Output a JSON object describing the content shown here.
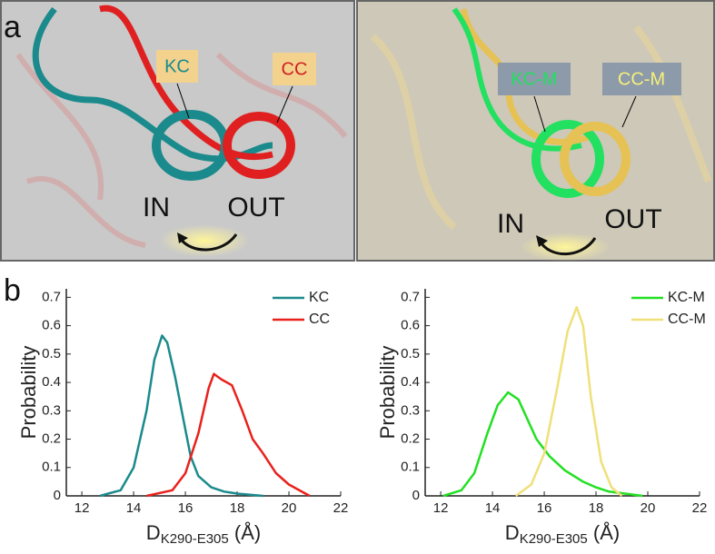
{
  "panels": {
    "a": {
      "label": "a",
      "left": {
        "kc": "KC",
        "cc": "CC",
        "in": "IN",
        "out": "OUT"
      },
      "right": {
        "kc": "KC-M",
        "cc": "CC-M",
        "in": "IN",
        "out": "OUT"
      }
    },
    "b": {
      "label": "b"
    }
  },
  "chart_data": [
    {
      "type": "line",
      "ylabel": "Probability",
      "xlabel": "D",
      "xlabel_sub": "K290-E305",
      "xlabel_tail": " (Å)",
      "xlim": [
        11.4,
        22
      ],
      "xticks": [
        12,
        14,
        16,
        18,
        20,
        22
      ],
      "ylim": [
        0,
        0.73
      ],
      "yticks": [
        0,
        0.1,
        0.2,
        0.3,
        0.4,
        0.5,
        0.6,
        0.7
      ],
      "legend": "upper right",
      "series": [
        {
          "name": "KC",
          "color": "#1b8a8c",
          "x": [
            12.7,
            13.5,
            14,
            14.5,
            14.8,
            15.1,
            15.3,
            15.6,
            15.9,
            16.2,
            16.5,
            17,
            17.5,
            18,
            19
          ],
          "values": [
            0,
            0.02,
            0.1,
            0.3,
            0.48,
            0.565,
            0.54,
            0.42,
            0.28,
            0.14,
            0.07,
            0.03,
            0.015,
            0.008,
            0
          ]
        },
        {
          "name": "CC",
          "color": "#e8211c",
          "x": [
            14.5,
            15.5,
            16,
            16.5,
            16.9,
            17.1,
            17.4,
            17.8,
            18.2,
            18.6,
            19,
            19.5,
            20,
            20.8
          ],
          "values": [
            0,
            0.02,
            0.08,
            0.22,
            0.38,
            0.43,
            0.41,
            0.39,
            0.3,
            0.2,
            0.15,
            0.08,
            0.04,
            0
          ]
        }
      ]
    },
    {
      "type": "line",
      "ylabel": "Probability",
      "xlabel": "D",
      "xlabel_sub": "K290-E305",
      "xlabel_tail": " (Å)",
      "xlim": [
        11.4,
        22
      ],
      "xticks": [
        12,
        14,
        16,
        18,
        20,
        22
      ],
      "ylim": [
        0,
        0.73
      ],
      "yticks": [
        0,
        0.1,
        0.2,
        0.3,
        0.4,
        0.5,
        0.6,
        0.7
      ],
      "legend": "upper right",
      "series": [
        {
          "name": "KC-M",
          "color": "#22e022",
          "x": [
            12.1,
            12.8,
            13.3,
            13.8,
            14.2,
            14.6,
            15,
            15.3,
            15.7,
            16.2,
            16.8,
            17.5,
            18,
            18.5,
            19.8
          ],
          "values": [
            0,
            0.02,
            0.08,
            0.22,
            0.32,
            0.365,
            0.34,
            0.28,
            0.2,
            0.14,
            0.09,
            0.05,
            0.03,
            0.015,
            0
          ]
        },
        {
          "name": "CC-M",
          "color": "#efe07a",
          "x": [
            14.9,
            15.5,
            16,
            16.5,
            16.9,
            17.25,
            17.5,
            17.8,
            18.2,
            18.6,
            19
          ],
          "values": [
            0,
            0.04,
            0.15,
            0.38,
            0.58,
            0.665,
            0.6,
            0.35,
            0.12,
            0.03,
            0
          ]
        }
      ]
    }
  ]
}
